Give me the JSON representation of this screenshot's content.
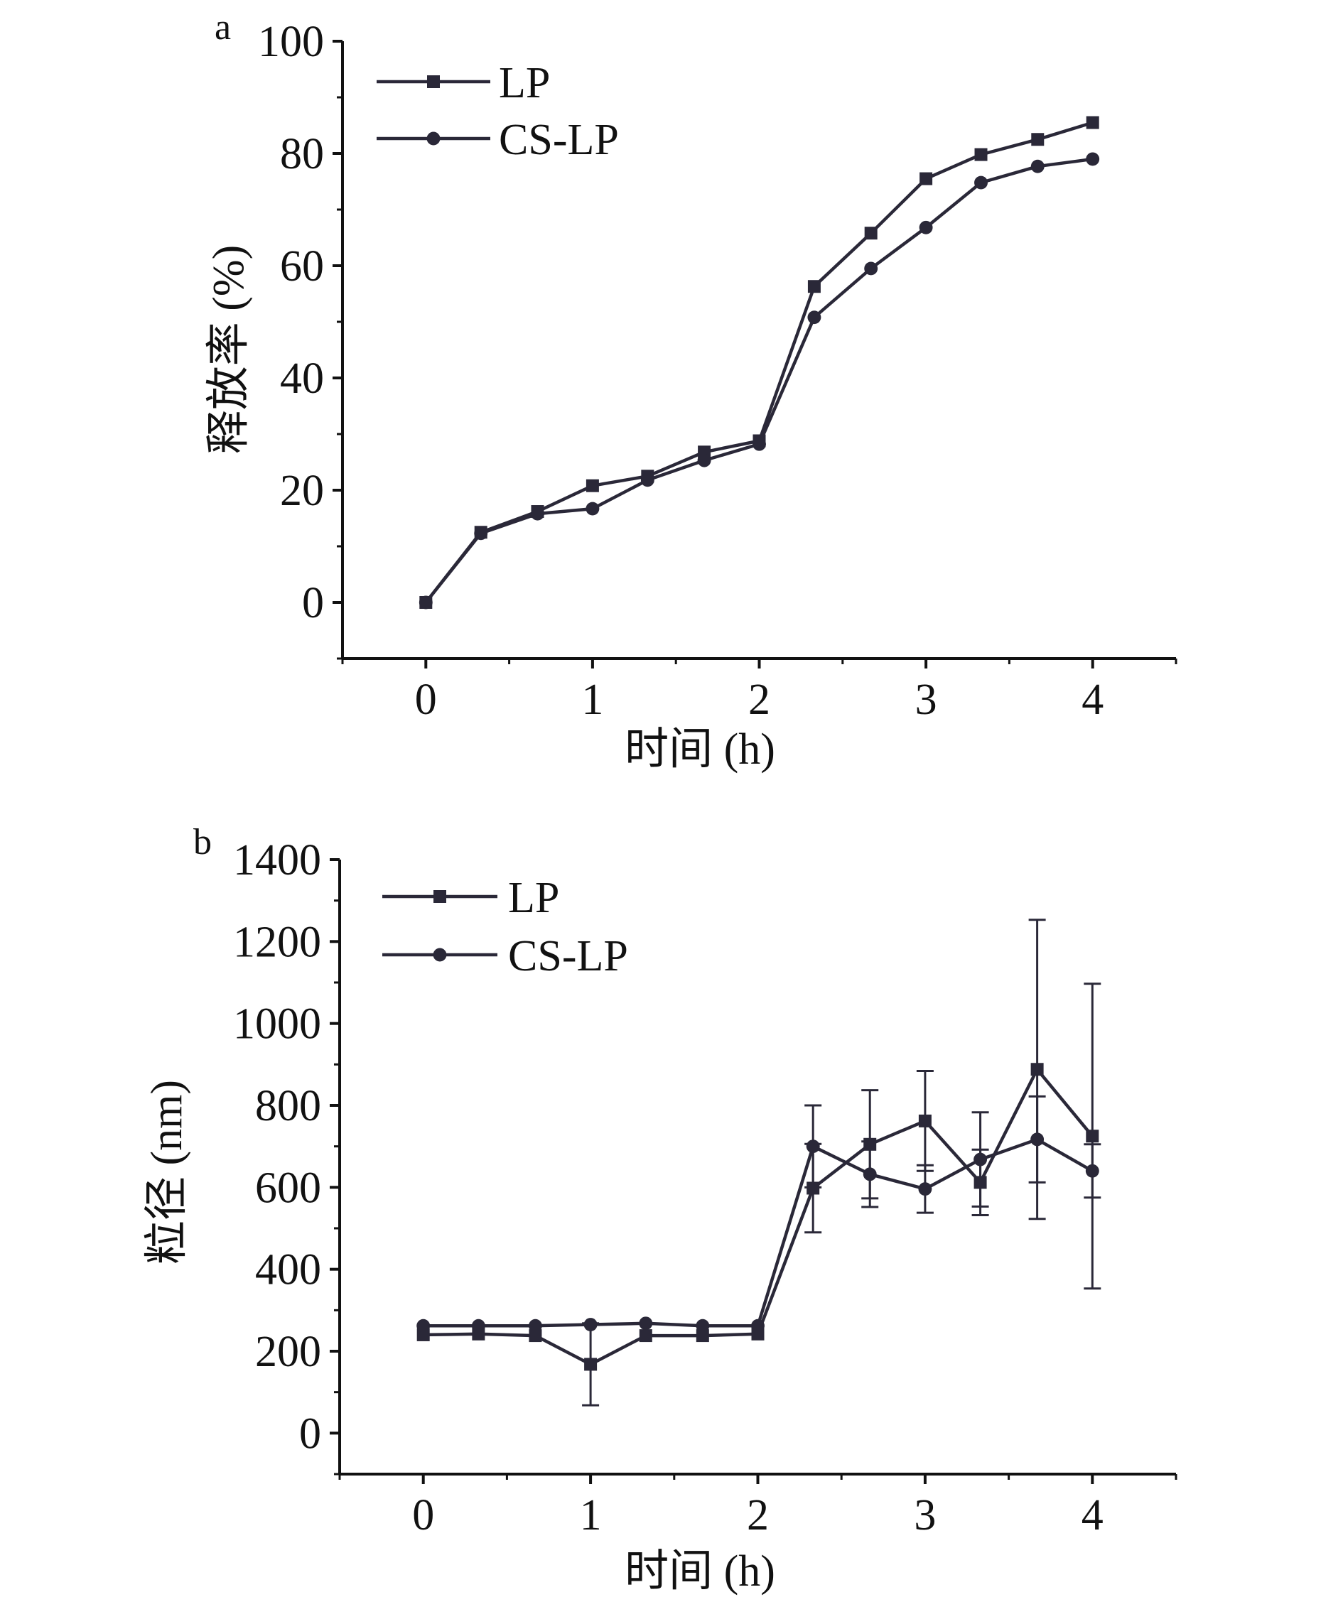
{
  "colors": {
    "axis": "#111111",
    "series": "#2a2838"
  },
  "chart_data": [
    {
      "panel_label": "a",
      "type": "line",
      "xlabel": "时间 (h)",
      "ylabel": "释放率 (%)",
      "xlim": [
        -0.5,
        4.5
      ],
      "ylim": [
        -10,
        100
      ],
      "xticks": [
        0,
        1,
        2,
        3,
        4
      ],
      "yticks": [
        0,
        20,
        40,
        60,
        80,
        100
      ],
      "x_tick_labels": [
        "0",
        "1",
        "2",
        "3",
        "4"
      ],
      "y_tick_labels": [
        "0",
        "20",
        "40",
        "60",
        "80",
        "100"
      ],
      "legend_position": "top-left",
      "grid": false,
      "x": [
        0,
        0.33,
        0.67,
        1,
        1.33,
        1.67,
        2,
        2.33,
        2.67,
        3,
        3.33,
        3.67,
        4
      ],
      "series": [
        {
          "name": "LP",
          "marker": "square",
          "values": [
            0,
            12.5,
            16.2,
            20.8,
            22.5,
            26.8,
            28.8,
            56.3,
            65.8,
            75.5,
            79.8,
            82.5,
            85.5
          ]
        },
        {
          "name": "CS-LP",
          "marker": "circle",
          "values": [
            0,
            12.3,
            15.8,
            16.7,
            21.8,
            25.3,
            28.2,
            50.8,
            59.5,
            66.8,
            74.8,
            77.7,
            79.0
          ]
        }
      ]
    },
    {
      "panel_label": "b",
      "type": "line",
      "xlabel": "时间 (h)",
      "ylabel": "粒径 (nm)",
      "xlim": [
        -0.5,
        4.5
      ],
      "ylim": [
        -100,
        1400
      ],
      "xticks": [
        0,
        1,
        2,
        3,
        4
      ],
      "yticks": [
        0,
        200,
        400,
        600,
        800,
        1000,
        1200,
        1400
      ],
      "x_tick_labels": [
        "0",
        "1",
        "2",
        "3",
        "4"
      ],
      "y_tick_labels": [
        "0",
        "200",
        "400",
        "600",
        "800",
        "1000",
        "1200",
        "1400"
      ],
      "legend_position": "top-left",
      "grid": false,
      "x": [
        0,
        0.33,
        0.67,
        1,
        1.33,
        1.67,
        2,
        2.33,
        2.67,
        3,
        3.33,
        3.67,
        4
      ],
      "series": [
        {
          "name": "LP",
          "marker": "square",
          "values": [
            240,
            242,
            238,
            168,
            238,
            238,
            242,
            598,
            705,
            762,
            612,
            888,
            725
          ],
          "errors": [
            0,
            0,
            0,
            100,
            0,
            0,
            0,
            108,
            132,
            122,
            80,
            365,
            372
          ]
        },
        {
          "name": "CS-LP",
          "marker": "circle",
          "values": [
            262,
            262,
            262,
            265,
            268,
            262,
            262,
            700,
            632,
            596,
            668,
            717,
            640
          ],
          "errors": [
            0,
            0,
            0,
            0,
            0,
            0,
            0,
            100,
            80,
            58,
            115,
            105,
            65
          ]
        }
      ]
    }
  ]
}
